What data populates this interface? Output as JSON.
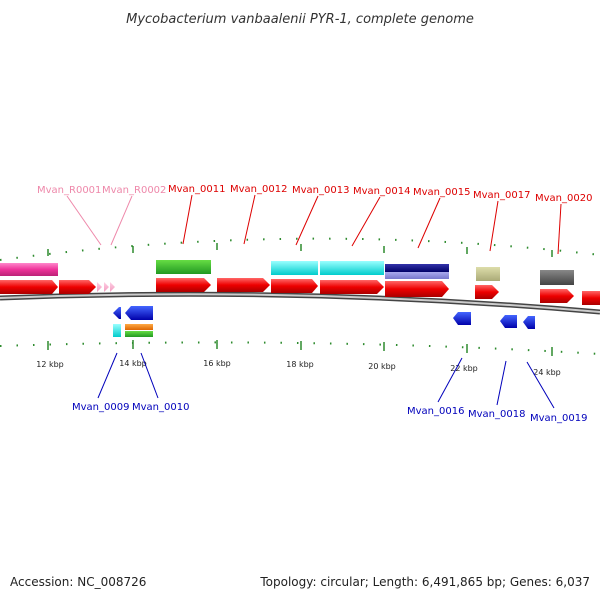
{
  "title": "Mycobacterium vanbaalenii PYR-1, complete genome",
  "footer": {
    "accession": "Accession: NC_008726",
    "stats": "Topology: circular; Length: 6,491,865 bp; Genes: 6,037"
  },
  "colors": {
    "backbone": "#888888",
    "tick": "#2e8b2e",
    "label_red": "#dd0000",
    "label_blue": "#0000bb",
    "label_pink": "#ee88aa"
  },
  "ticks": [
    "12 kbp",
    "14 kbp",
    "16 kbp",
    "18 kbp",
    "20 kbp",
    "22 kbp",
    "24 kbp"
  ],
  "labels_top": [
    {
      "id": "Mvan_R0001",
      "color": "#ee88aa"
    },
    {
      "id": "Mvan_R0002",
      "color": "#ee88aa"
    },
    {
      "id": "Mvan_0011",
      "color": "#dd0000"
    },
    {
      "id": "Mvan_0012",
      "color": "#dd0000"
    },
    {
      "id": "Mvan_0013",
      "color": "#dd0000"
    },
    {
      "id": "Mvan_0014",
      "color": "#dd0000"
    },
    {
      "id": "Mvan_0015",
      "color": "#dd0000"
    },
    {
      "id": "Mvan_0017",
      "color": "#dd0000"
    },
    {
      "id": "Mvan_0020",
      "color": "#dd0000"
    }
  ],
  "labels_bottom": [
    {
      "id": "Mvan_0009",
      "color": "#0000bb"
    },
    {
      "id": "Mvan_0010",
      "color": "#0000bb"
    },
    {
      "id": "Mvan_0016",
      "color": "#0000bb"
    },
    {
      "id": "Mvan_0018",
      "color": "#0000bb"
    },
    {
      "id": "Mvan_0019",
      "color": "#0000bb"
    }
  ]
}
